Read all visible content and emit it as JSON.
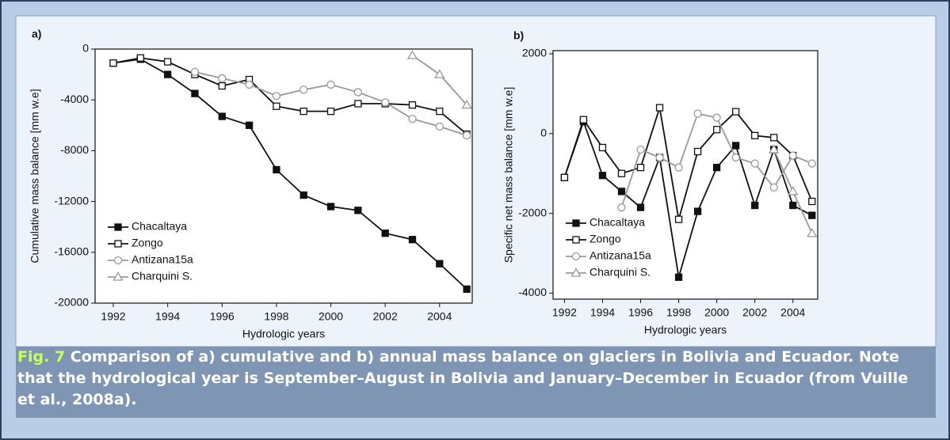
{
  "chart_data": [
    {
      "type": "line",
      "panel_label": "a)",
      "x_label": "Hydrologic years",
      "y_label": "Cumulative mass balance [mm w.e]",
      "x": [
        1992,
        1993,
        1994,
        1995,
        1996,
        1997,
        1998,
        1999,
        2000,
        2001,
        2002,
        2003,
        2004,
        2005
      ],
      "xlim": [
        1991.33,
        2005.2
      ],
      "xticks": [
        1992,
        1994,
        1996,
        1998,
        2000,
        2002,
        2004
      ],
      "ylim": [
        -20000,
        0
      ],
      "yticks": [
        0,
        -4000,
        -8000,
        -12000,
        -16000,
        -20000
      ],
      "series": [
        {
          "name": "Chacaltaya",
          "color": "#111111",
          "marker": "square-filled",
          "values": [
            -1100,
            -800,
            -2000,
            -3500,
            -5300,
            -6000,
            -9500,
            -11500,
            -12400,
            -12700,
            -14500,
            -15000,
            -16900,
            -18900
          ]
        },
        {
          "name": "Zongo",
          "color": "#111111",
          "marker": "square-open",
          "values": [
            -1100,
            -700,
            -1000,
            -2000,
            -2900,
            -2400,
            -4500,
            -4900,
            -4900,
            -4300,
            -4300,
            -4400,
            -4900,
            -6700
          ]
        },
        {
          "name": "Antizana15a",
          "color": "#999999",
          "marker": "circle-open",
          "values": [
            null,
            null,
            null,
            -1800,
            -2300,
            -2800,
            -3700,
            -3200,
            -2800,
            -3400,
            -4200,
            -5500,
            -6100,
            -6800
          ]
        },
        {
          "name": "Charquini S.",
          "color": "#999999",
          "marker": "triangle-open",
          "values": [
            null,
            null,
            null,
            null,
            null,
            null,
            null,
            null,
            null,
            null,
            null,
            -500,
            -2000,
            -4400
          ]
        }
      ]
    },
    {
      "type": "line",
      "panel_label": "b)",
      "x_label": "Hydrologic years",
      "y_label": "Specific net mass balance [mm w.e]",
      "x": [
        1992,
        1993,
        1994,
        1995,
        1996,
        1997,
        1998,
        1999,
        2000,
        2001,
        2002,
        2003,
        2004,
        2005
      ],
      "xlim": [
        1991.4,
        2005.3
      ],
      "xticks": [
        1992,
        1994,
        1996,
        1998,
        2000,
        2002,
        2004
      ],
      "ylim": [
        -4150,
        2080
      ],
      "yticks": [
        2000,
        0,
        -2000,
        -4000
      ],
      "series": [
        {
          "name": "Chacaltaya",
          "color": "#111111",
          "marker": "square-filled",
          "values": [
            -1100,
            300,
            -1050,
            -1450,
            -1850,
            -600,
            -3600,
            -1950,
            -850,
            -300,
            -1800,
            -400,
            -1800,
            -2050
          ]
        },
        {
          "name": "Zongo",
          "color": "#111111",
          "marker": "square-open",
          "values": [
            -1100,
            350,
            -350,
            -1000,
            -850,
            650,
            -2150,
            -450,
            100,
            550,
            -50,
            -100,
            -550,
            -1700
          ]
        },
        {
          "name": "Antizana15a",
          "color": "#999999",
          "marker": "circle-open",
          "values": [
            null,
            null,
            null,
            -1850,
            -400,
            -600,
            -850,
            500,
            400,
            -600,
            -750,
            -1350,
            -550,
            -750
          ]
        },
        {
          "name": "Charquini S.",
          "color": "#999999",
          "marker": "triangle-open",
          "values": [
            null,
            null,
            null,
            null,
            null,
            null,
            null,
            null,
            null,
            null,
            null,
            -400,
            -1450,
            -2500
          ]
        }
      ]
    }
  ],
  "caption": {
    "label": "Fig. 7",
    "text": "Comparison of a) cumulative and b) annual mass balance on glaciers in Bolivia and Ecuador. Note that the hydrological year is September–August in Bolivia and January–December in Ecuador (from Vuille et al., 2008a)."
  }
}
